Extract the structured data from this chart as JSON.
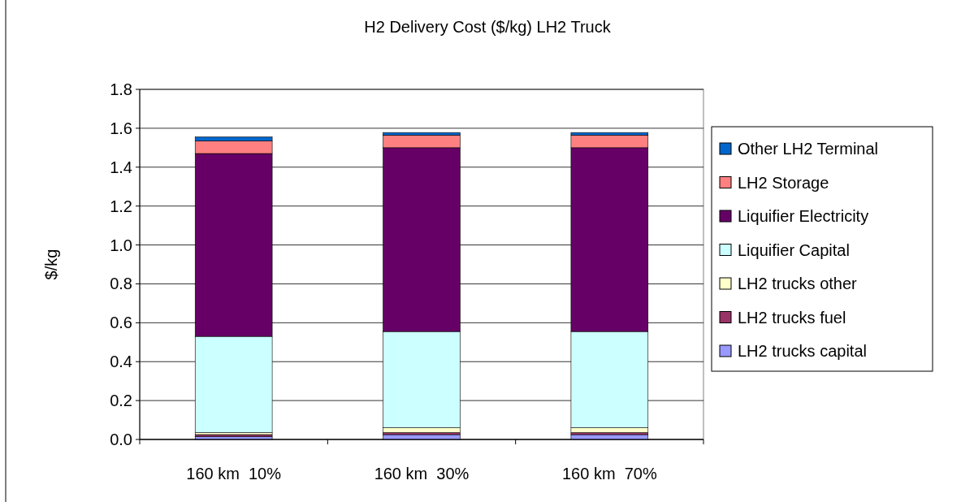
{
  "chart_data": {
    "type": "bar",
    "title": "H2 Delivery Cost ($/kg) LH2 Truck",
    "ylabel": "$/kg",
    "stacked": true,
    "categories": [
      "160 km  10%",
      "160 km  30%",
      "160 km  70%"
    ],
    "series": [
      {
        "name": "LH2 trucks capital",
        "color": "#9999ff",
        "values": [
          0.015,
          0.025,
          0.025
        ]
      },
      {
        "name": "LH2 trucks fuel",
        "color": "#993366",
        "values": [
          0.01,
          0.01,
          0.01
        ]
      },
      {
        "name": "LH2 trucks other",
        "color": "#ffffcc",
        "values": [
          0.01,
          0.025,
          0.025
        ]
      },
      {
        "name": "Liquifier Capital",
        "color": "#ccffff",
        "values": [
          0.495,
          0.495,
          0.495
        ]
      },
      {
        "name": "Liquifier Electricity",
        "color": "#660066",
        "values": [
          0.94,
          0.945,
          0.945
        ]
      },
      {
        "name": "LH2 Storage",
        "color": "#ff8080",
        "values": [
          0.065,
          0.065,
          0.065
        ]
      },
      {
        "name": "Other LH2 Terminal",
        "color": "#0066cc",
        "values": [
          0.02,
          0.013,
          0.013
        ]
      }
    ],
    "ylim": [
      0,
      1.8
    ],
    "yticks": [
      {
        "value": 0,
        "label": "0.0"
      },
      {
        "value": 0.2,
        "label": "0.2"
      },
      {
        "value": 0.4,
        "label": "0.4"
      },
      {
        "value": 0.6,
        "label": "0.6"
      },
      {
        "value": 0.8,
        "label": "0.8"
      },
      {
        "value": 1,
        "label": "1.0"
      },
      {
        "value": 1.2,
        "label": "1.2"
      },
      {
        "value": 1.4,
        "label": "1.4"
      },
      {
        "value": 1.6,
        "label": "1.6"
      },
      {
        "value": 1.8,
        "label": "1.8"
      }
    ],
    "grid": "y",
    "legend": "right"
  }
}
